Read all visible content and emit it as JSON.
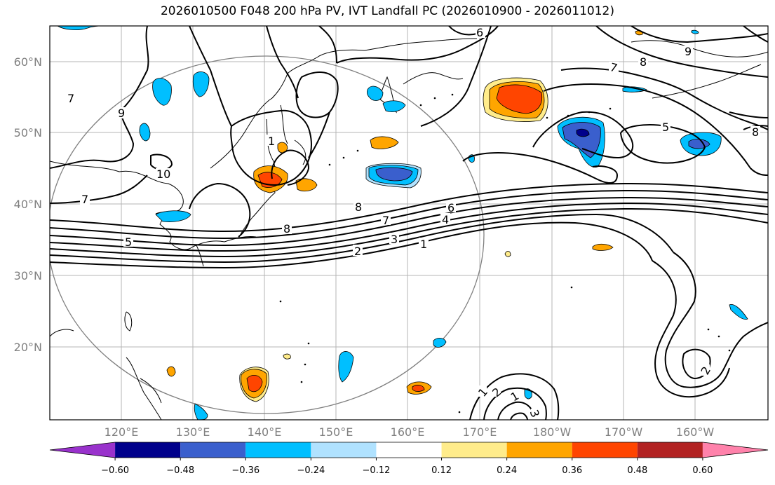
{
  "title": "2026010500 F048 200 hPa PV, IVT Landfall PC (2026010900 - 2026011012)",
  "lat_labels": [
    "60°N",
    "50°N",
    "40°N",
    "30°N",
    "20°N"
  ],
  "lon_labels": [
    "120°E",
    "130°E",
    "140°E",
    "150°E",
    "160°E",
    "170°E",
    "180°W",
    "170°W",
    "160°W"
  ],
  "contour_labels": [
    "6",
    "7",
    "8",
    "9",
    "5",
    "8",
    "9",
    "10",
    "7",
    "7",
    "8",
    "7",
    "6",
    "4",
    "5",
    "2",
    "3",
    "1",
    "8",
    "1",
    "2",
    "1",
    "3",
    "2",
    "1"
  ],
  "colorbar": {
    "ticks": [
      "−0.60",
      "−0.48",
      "−0.36",
      "−0.24",
      "−0.12",
      "0.12",
      "0.24",
      "0.36",
      "0.48",
      "0.60"
    ],
    "colors": [
      "#9932cc",
      "#00008b",
      "#3a5fcd",
      "#00bfff",
      "#b0e2ff",
      "#ffffff",
      "#ffec8b",
      "#ffa500",
      "#ff4500",
      "#b22222",
      "#ff82ab"
    ]
  }
}
